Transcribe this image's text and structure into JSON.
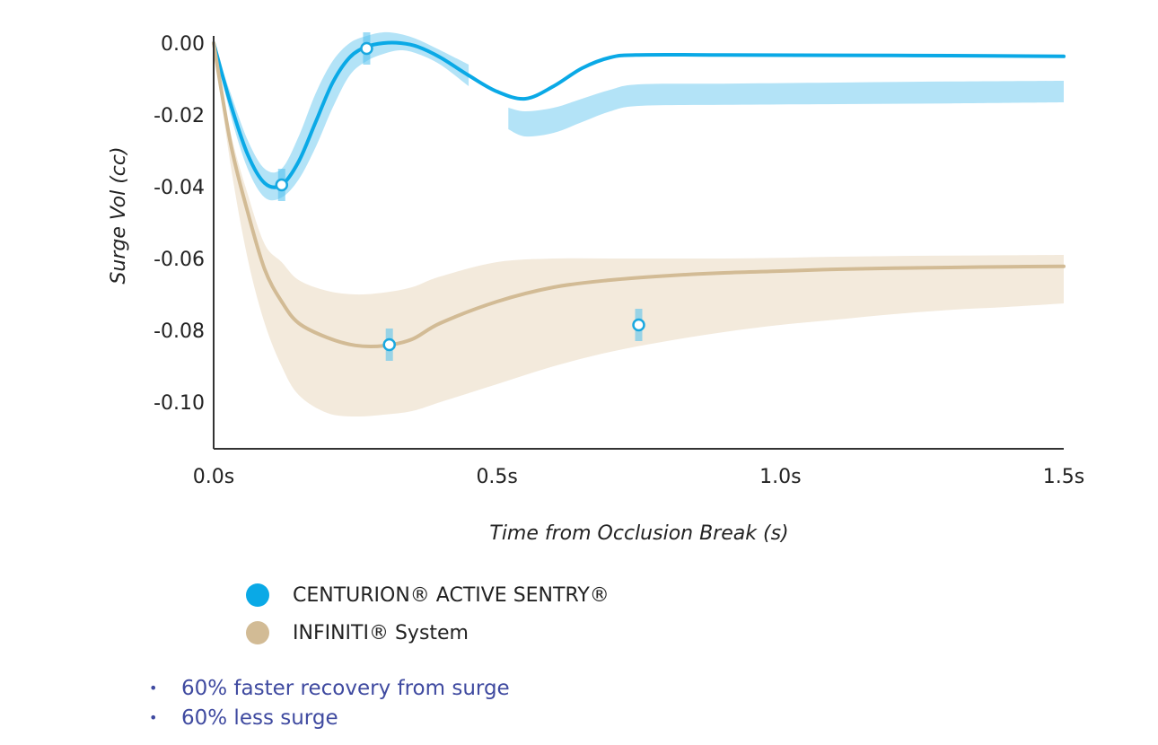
{
  "chart_data": {
    "type": "line",
    "title": "",
    "xlabel": "Time from Occlusion Break (s)",
    "ylabel": "Surge Vol (cc)",
    "xlim": [
      0,
      1.5
    ],
    "ylim": [
      -0.115,
      0.0
    ],
    "x_ticks": [
      {
        "value": 0.0,
        "label": "0.0s"
      },
      {
        "value": 0.5,
        "label": "0.5s"
      },
      {
        "value": 1.0,
        "label": "1.0s"
      },
      {
        "value": 1.5,
        "label": "1.5s"
      }
    ],
    "y_ticks": [
      {
        "value": 0.0,
        "label": "0.00"
      },
      {
        "value": -0.02,
        "label": "-0.02"
      },
      {
        "value": -0.04,
        "label": "-0.04"
      },
      {
        "value": -0.06,
        "label": "-0.06"
      },
      {
        "value": -0.08,
        "label": "-0.08"
      },
      {
        "value": -0.1,
        "label": "-0.10"
      }
    ],
    "series": [
      {
        "name": "CENTURION® ACTIVE SENTRY®",
        "color": "#0aa9e6",
        "band_color": "#b3e3f7",
        "x": [
          0.0,
          0.03,
          0.06,
          0.09,
          0.12,
          0.15,
          0.18,
          0.21,
          0.24,
          0.27,
          0.3,
          0.33,
          0.36,
          0.4,
          0.45,
          0.5,
          0.55,
          0.6,
          0.65,
          0.7,
          0.75,
          0.9,
          1.1,
          1.3,
          1.5
        ],
        "y": [
          0.0,
          -0.017,
          -0.031,
          -0.039,
          -0.0395,
          -0.033,
          -0.022,
          -0.011,
          -0.004,
          -0.001,
          0.0,
          0.0,
          -0.001,
          -0.004,
          -0.009,
          -0.0135,
          -0.0155,
          -0.012,
          -0.007,
          -0.004,
          -0.0033,
          -0.0033,
          -0.0034,
          -0.0035,
          -0.0037
        ],
        "band_upper": [
          0.0,
          -0.014,
          -0.027,
          -0.035,
          -0.035,
          -0.026,
          -0.014,
          -0.005,
          0.0,
          0.002,
          0.003,
          0.0025,
          0.001,
          -0.002,
          -0.006,
          null,
          null,
          null,
          null,
          null,
          null,
          null,
          null,
          null,
          null
        ],
        "band_lower": [
          0.0,
          -0.02,
          -0.035,
          -0.043,
          -0.043,
          -0.038,
          -0.029,
          -0.018,
          -0.009,
          -0.005,
          -0.003,
          -0.002,
          -0.003,
          -0.006,
          -0.012,
          null,
          null,
          null,
          null,
          null,
          null,
          null,
          null,
          null,
          null
        ],
        "band2": {
          "x": [
            0.52,
            0.55,
            0.6,
            0.65,
            0.7,
            0.75,
            0.9,
            1.1,
            1.3,
            1.5
          ],
          "upper": [
            -0.018,
            -0.019,
            -0.018,
            -0.0155,
            -0.013,
            -0.0115,
            -0.0113,
            -0.011,
            -0.0107,
            -0.0105
          ],
          "lower": [
            -0.024,
            -0.026,
            -0.025,
            -0.022,
            -0.019,
            -0.0175,
            -0.0172,
            -0.017,
            -0.0168,
            -0.0165
          ]
        },
        "markers": [
          {
            "x": 0.12,
            "y": -0.0395
          },
          {
            "x": 0.27,
            "y": -0.0015
          },
          {
            "x": 0.75,
            "y": -0.0785
          }
        ]
      },
      {
        "name": "INFINITI® System",
        "color": "#d2bb95",
        "band_color": "#f3eadc",
        "x": [
          0.0,
          0.03,
          0.06,
          0.09,
          0.12,
          0.15,
          0.2,
          0.25,
          0.3,
          0.35,
          0.4,
          0.5,
          0.6,
          0.7,
          0.8,
          0.9,
          1.0,
          1.1,
          1.2,
          1.3,
          1.4,
          1.5
        ],
        "y": [
          0.0,
          -0.028,
          -0.047,
          -0.063,
          -0.072,
          -0.078,
          -0.082,
          -0.0842,
          -0.0843,
          -0.0825,
          -0.078,
          -0.072,
          -0.068,
          -0.066,
          -0.0648,
          -0.064,
          -0.0635,
          -0.063,
          -0.0627,
          -0.0625,
          -0.0623,
          -0.0622
        ],
        "band_upper": [
          0.0,
          -0.025,
          -0.042,
          -0.056,
          -0.061,
          -0.066,
          -0.069,
          -0.07,
          -0.0695,
          -0.068,
          -0.065,
          -0.061,
          -0.06,
          -0.06,
          -0.06,
          -0.06,
          -0.0598,
          -0.0595,
          -0.0593,
          -0.0592,
          -0.0591,
          -0.059
        ],
        "band_lower": [
          0.0,
          -0.034,
          -0.06,
          -0.078,
          -0.09,
          -0.098,
          -0.103,
          -0.104,
          -0.1035,
          -0.1025,
          -0.1,
          -0.095,
          -0.09,
          -0.086,
          -0.083,
          -0.0805,
          -0.0785,
          -0.077,
          -0.0755,
          -0.0743,
          -0.0735,
          -0.0725
        ],
        "markers": [
          {
            "x": 0.31,
            "y": -0.084
          }
        ]
      }
    ]
  },
  "legend": {
    "items": [
      {
        "label": "CENTURION® ACTIVE SENTRY®",
        "color": "#0aa9e6"
      },
      {
        "label": "INFINITI® System",
        "color": "#d2bb95"
      }
    ]
  },
  "bullets": {
    "marker": "•",
    "items": [
      {
        "text": "60% faster recovery from surge"
      },
      {
        "text": "60% less surge"
      }
    ]
  },
  "colors": {
    "axis": "#333333",
    "bullet_text": "#3f4aa0"
  }
}
